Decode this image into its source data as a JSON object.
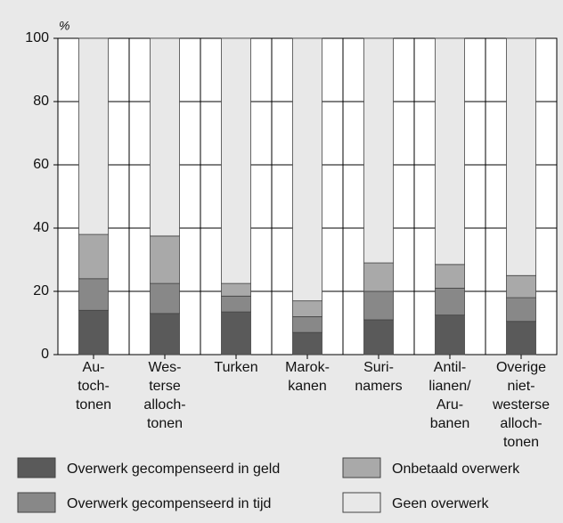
{
  "chart_data": {
    "type": "stacked_bar",
    "y_label": "%",
    "categories": [
      [
        "Au-",
        "toch-",
        "tonen"
      ],
      [
        "Wes-",
        "terse",
        "alloch-",
        "tonen"
      ],
      [
        "Turken"
      ],
      [
        "Marok-",
        "kanen"
      ],
      [
        "Suri-",
        "namers"
      ],
      [
        "Antil-",
        "lianen/",
        "Aru-",
        "banen"
      ],
      [
        "Overige",
        "niet-",
        "westerse",
        "alloch-",
        "tonen"
      ]
    ],
    "series": [
      {
        "name": "Overwerk gecompenseerd in geld",
        "color": "#5a5a5a",
        "values": [
          14,
          13,
          13.5,
          7,
          11,
          12.5,
          10.5
        ]
      },
      {
        "name": "Overwerk gecompenseerd in tijd",
        "color": "#888888",
        "values": [
          10,
          9.5,
          5,
          5,
          9,
          8.5,
          7.5
        ]
      },
      {
        "name": "Onbetaald overwerk",
        "color": "#a9a9a9",
        "values": [
          14,
          15,
          4,
          5,
          9,
          7.5,
          7
        ]
      },
      {
        "name": "Geen overwerk",
        "color": "#e8e8e8",
        "values": [
          62,
          62.5,
          77.5,
          83,
          71,
          71.5,
          75
        ]
      }
    ],
    "ylim": [
      0,
      100
    ],
    "yticks": [
      0,
      20,
      40,
      60,
      80,
      100
    ],
    "grid": true
  }
}
